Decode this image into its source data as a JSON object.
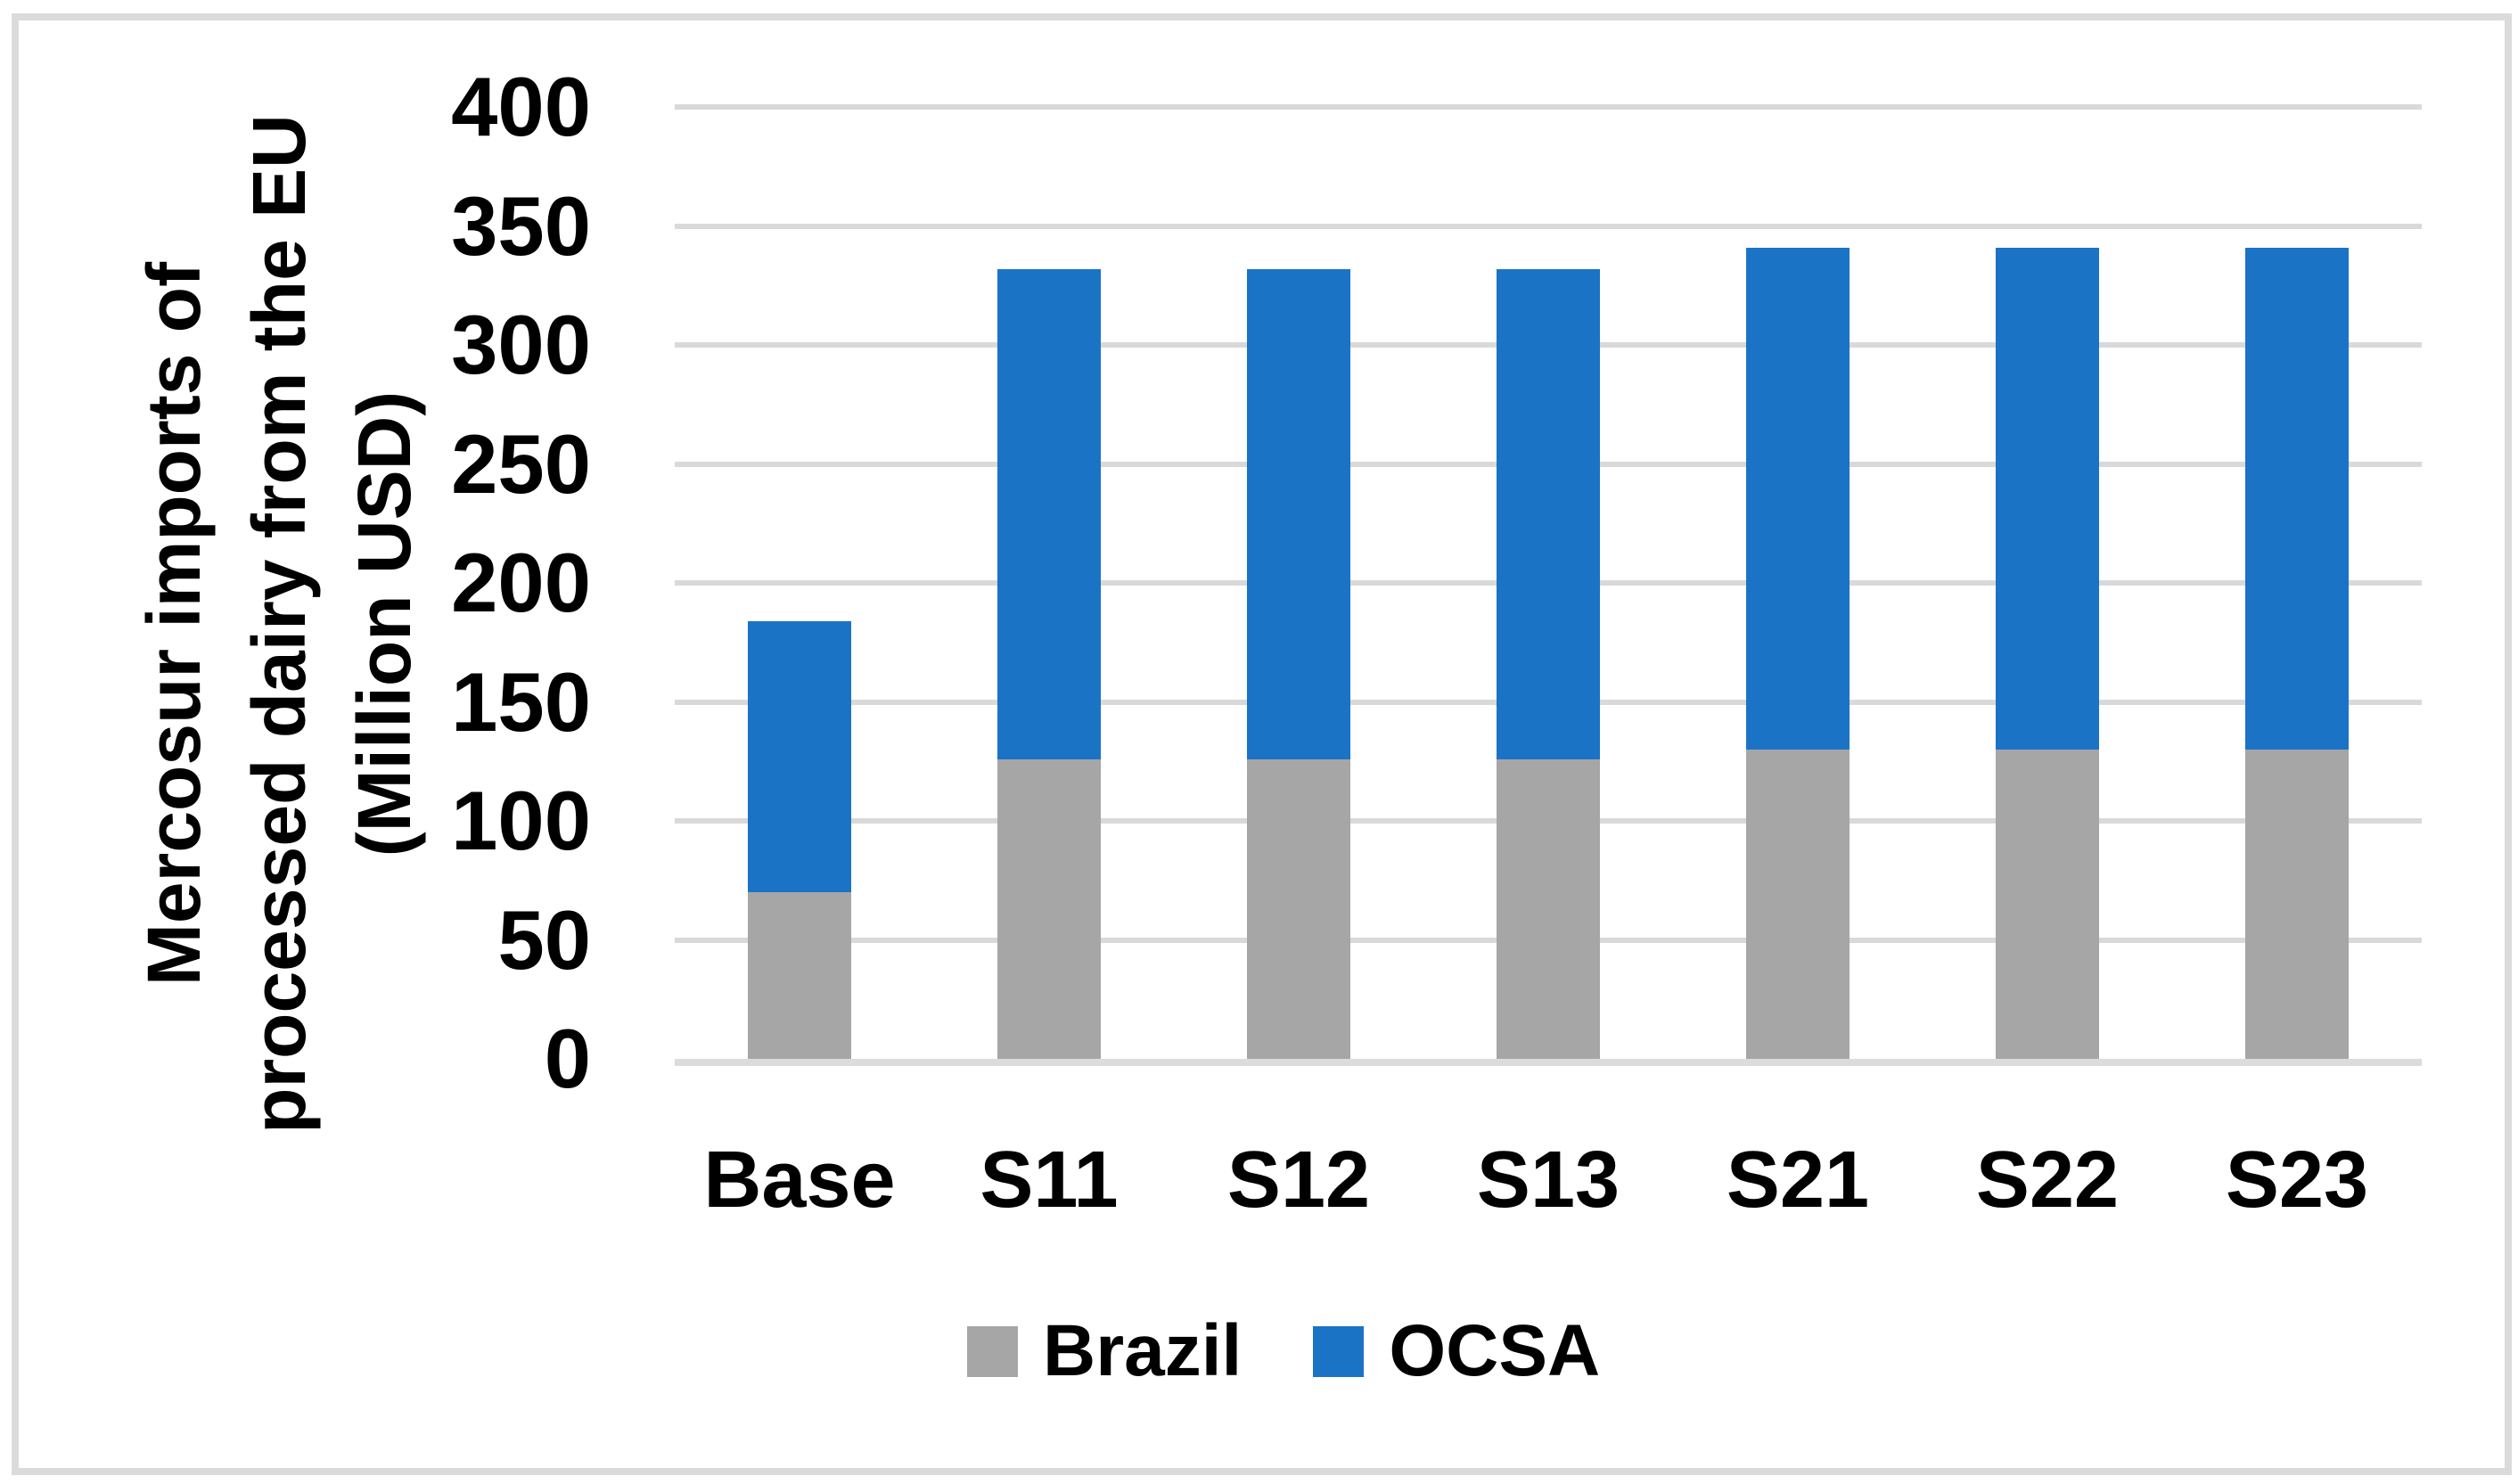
{
  "chart_data": {
    "type": "bar",
    "stacked": true,
    "title": "",
    "xlabel": "",
    "ylabel": "Mercosur imports of\nprocessed dairy from the EU\n(Million USD)",
    "categories": [
      "Base",
      "S11",
      "S12",
      "S13",
      "S21",
      "S22",
      "S23"
    ],
    "series": [
      {
        "name": "Brazil",
        "color": "#A6A6A6",
        "values": [
          70,
          126,
          126,
          126,
          130,
          130,
          130
        ]
      },
      {
        "name": "OCSA",
        "color": "#1B73C6",
        "values": [
          114,
          206,
          206,
          206,
          211,
          211,
          211
        ]
      }
    ],
    "stack_totals": [
      184,
      332,
      332,
      332,
      341,
      341,
      341
    ],
    "ylim": [
      0,
      400
    ],
    "ytick_step": 50,
    "yticks": [
      0,
      50,
      100,
      150,
      200,
      250,
      300,
      350,
      400
    ],
    "grid": "horizontal",
    "legend_position": "bottom",
    "colors": {
      "gridline": "#D9D9D9",
      "axis_line": "#DCDCDC",
      "border": "#DBDBDB",
      "text": "#000000",
      "background": "#FFFFFF"
    }
  }
}
